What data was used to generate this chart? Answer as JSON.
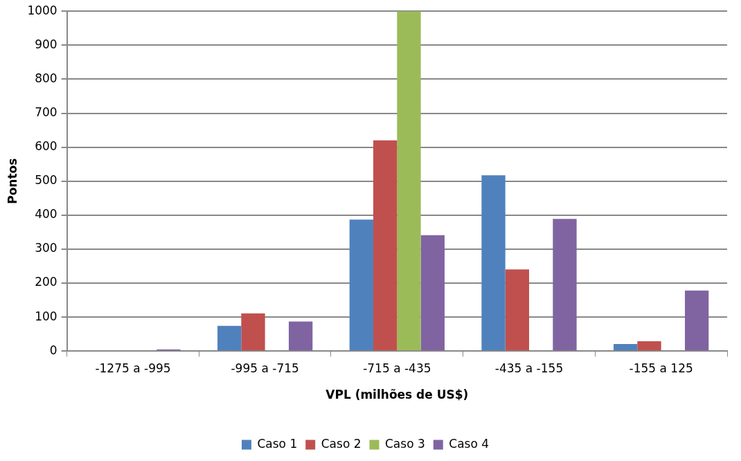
{
  "chart_data": {
    "type": "bar",
    "xlabel": "VPL (milhões de US$)",
    "ylabel": "Pontos",
    "categories": [
      "-1275 a -995",
      "-995 a -715",
      "-715 a -435",
      "-435 a -155",
      "-155 a 125"
    ],
    "series": [
      {
        "name": "Caso 1",
        "color": "#4f81bd",
        "values": [
          0,
          74,
          387,
          517,
          21
        ]
      },
      {
        "name": "Caso 2",
        "color": "#c0504d",
        "values": [
          0,
          111,
          620,
          240,
          29
        ]
      },
      {
        "name": "Caso 3",
        "color": "#9bbb59",
        "values": [
          0,
          0,
          1000,
          0,
          0
        ]
      },
      {
        "name": "Caso 4",
        "color": "#8064a2",
        "values": [
          5,
          87,
          341,
          389,
          178
        ]
      }
    ],
    "ylim": [
      0,
      1000
    ],
    "yticks": [
      0,
      100,
      200,
      300,
      400,
      500,
      600,
      700,
      800,
      900,
      1000
    ],
    "grid": "y",
    "legend": "bottom"
  }
}
